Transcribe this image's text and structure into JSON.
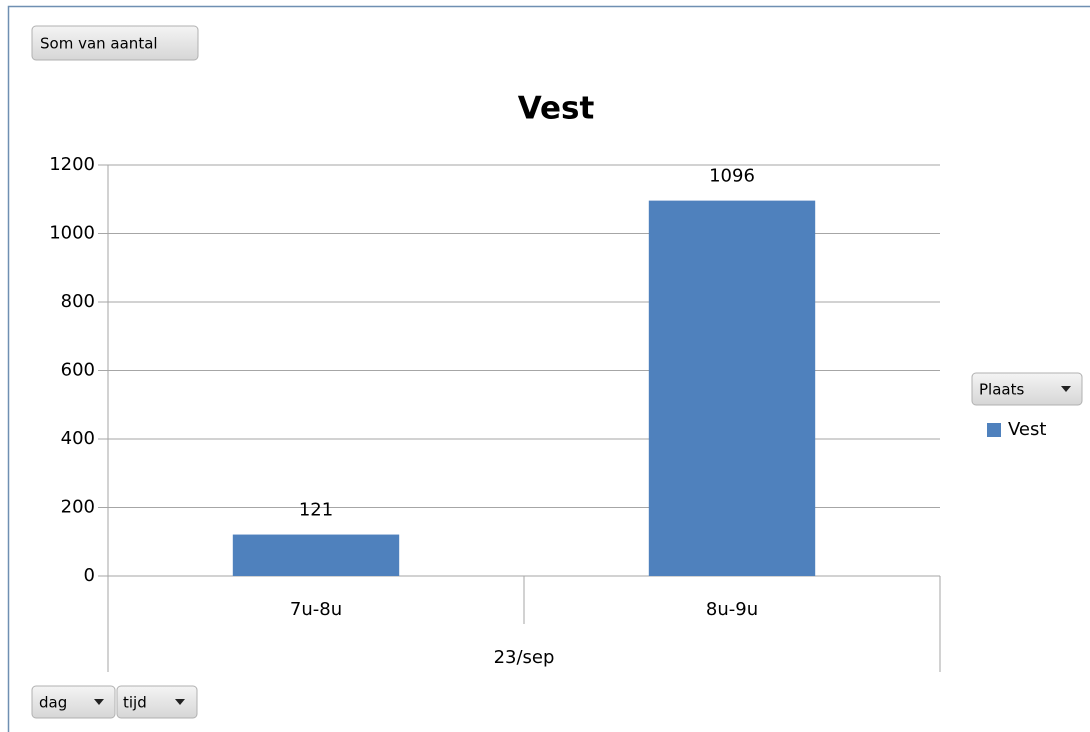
{
  "ui": {
    "value_field": "Som van aantal",
    "legend_field": "Plaats",
    "axis_fields": [
      "dag",
      "tijd"
    ]
  },
  "chart_data": {
    "type": "bar",
    "title": "Vest",
    "categories": [
      "7u-8u",
      "8u-9u"
    ],
    "group_label": "23/sep",
    "series": [
      {
        "name": "Vest",
        "color": "#4f81bd",
        "values": [
          121,
          1096
        ]
      }
    ],
    "ylim": [
      0,
      1200
    ],
    "yticks": [
      0,
      200,
      400,
      600,
      800,
      1000,
      1200
    ],
    "grid": true,
    "legend": "right",
    "data_labels": true
  }
}
